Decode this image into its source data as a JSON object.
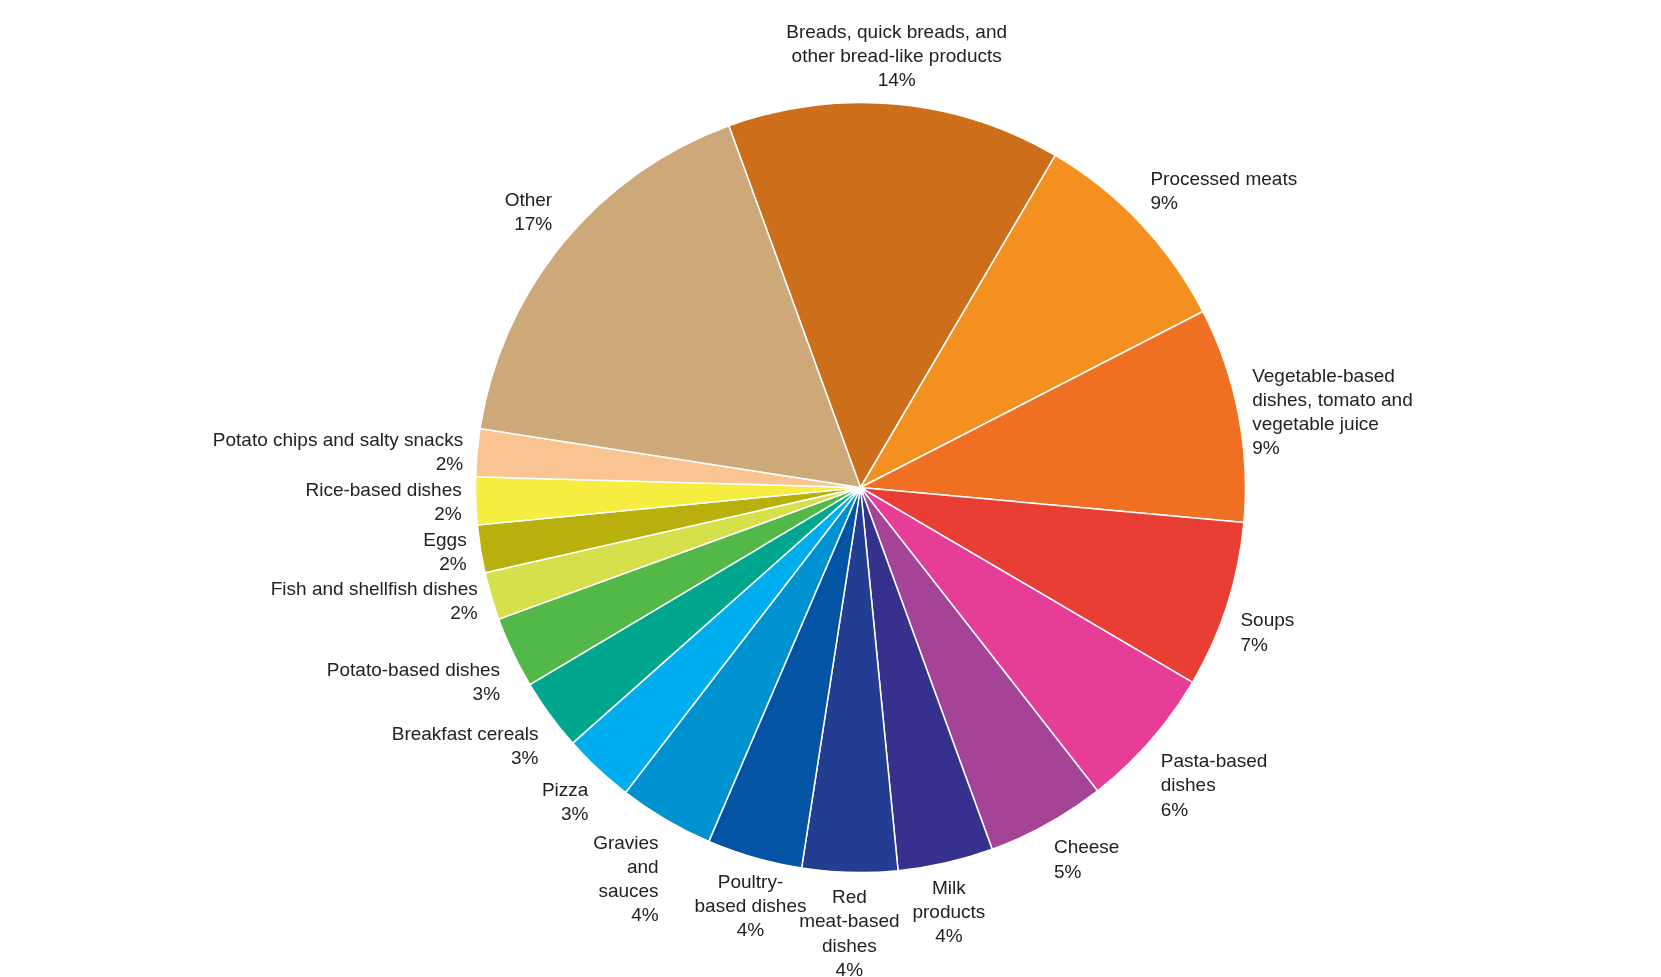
{
  "chart_data": {
    "type": "pie",
    "categories": [
      "Breads, quick breads, and\nother bread-like products",
      "Processed meats",
      "Vegetable-based\ndishes, tomato and\nvegetable juice",
      "Soups",
      "Pasta-based\ndishes",
      "Cheese",
      "Milk\nproducts",
      "Red\nmeat-based\ndishes",
      "Poultry-\nbased dishes",
      "Gravies\nand\nsauces",
      "Pizza",
      "Breakfast cereals",
      "Potato-based dishes",
      "Fish and shellfish dishes",
      "Eggs",
      "Rice-based dishes",
      "Potato chips and salty snacks",
      "Other"
    ],
    "values": [
      14,
      9,
      9,
      7,
      6,
      5,
      4,
      4,
      4,
      4,
      3,
      3,
      3,
      2,
      2,
      2,
      2,
      17
    ],
    "value_labels": [
      "14%",
      "9%",
      "9%",
      "7%",
      "6%",
      "5%",
      "4%",
      "4%",
      "4%",
      "4%",
      "3%",
      "3%",
      "3%",
      "2%",
      "2%",
      "2%",
      "2%",
      "17%"
    ],
    "colors": [
      "#cd6e1a",
      "#f39020",
      "#f07023",
      "#e83e34",
      "#e63d96",
      "#a54397",
      "#35318c",
      "#233d92",
      "#0354a4",
      "#0091d0",
      "#00aeef",
      "#00a78e",
      "#52b848",
      "#d6e04a",
      "#b9af0d",
      "#f7ec40",
      "#f9c392",
      "#cda878"
    ]
  }
}
